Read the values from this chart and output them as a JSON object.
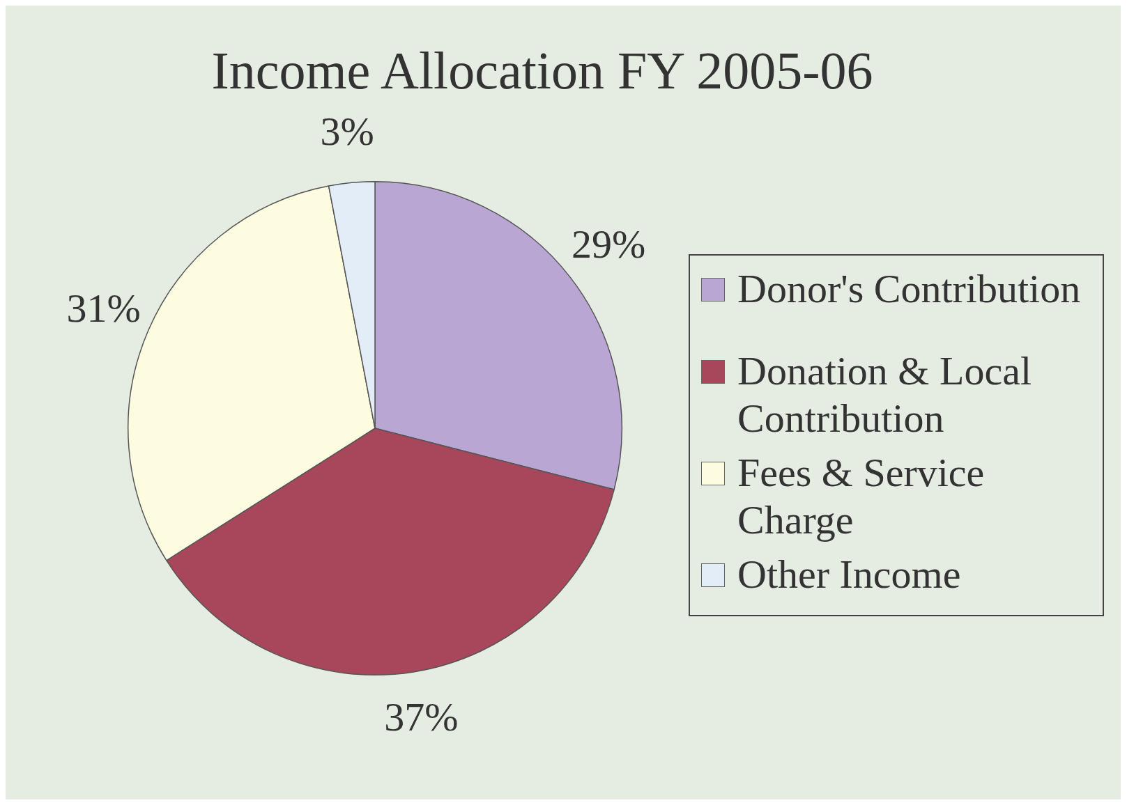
{
  "chart_data": {
    "type": "pie",
    "title": "Income Allocation FY 2005-06",
    "categories": [
      "Donor's Contribution",
      "Donation & Local Contribution",
      "Fees & Service Charge",
      "Other Income"
    ],
    "values": [
      29,
      37,
      31,
      3
    ],
    "colors": [
      "#b9a6d3",
      "#a8475c",
      "#fdfbe0",
      "#e2edf8"
    ],
    "value_labels": [
      "29%",
      "37%",
      "31%",
      "3%"
    ],
    "legend": "right"
  }
}
